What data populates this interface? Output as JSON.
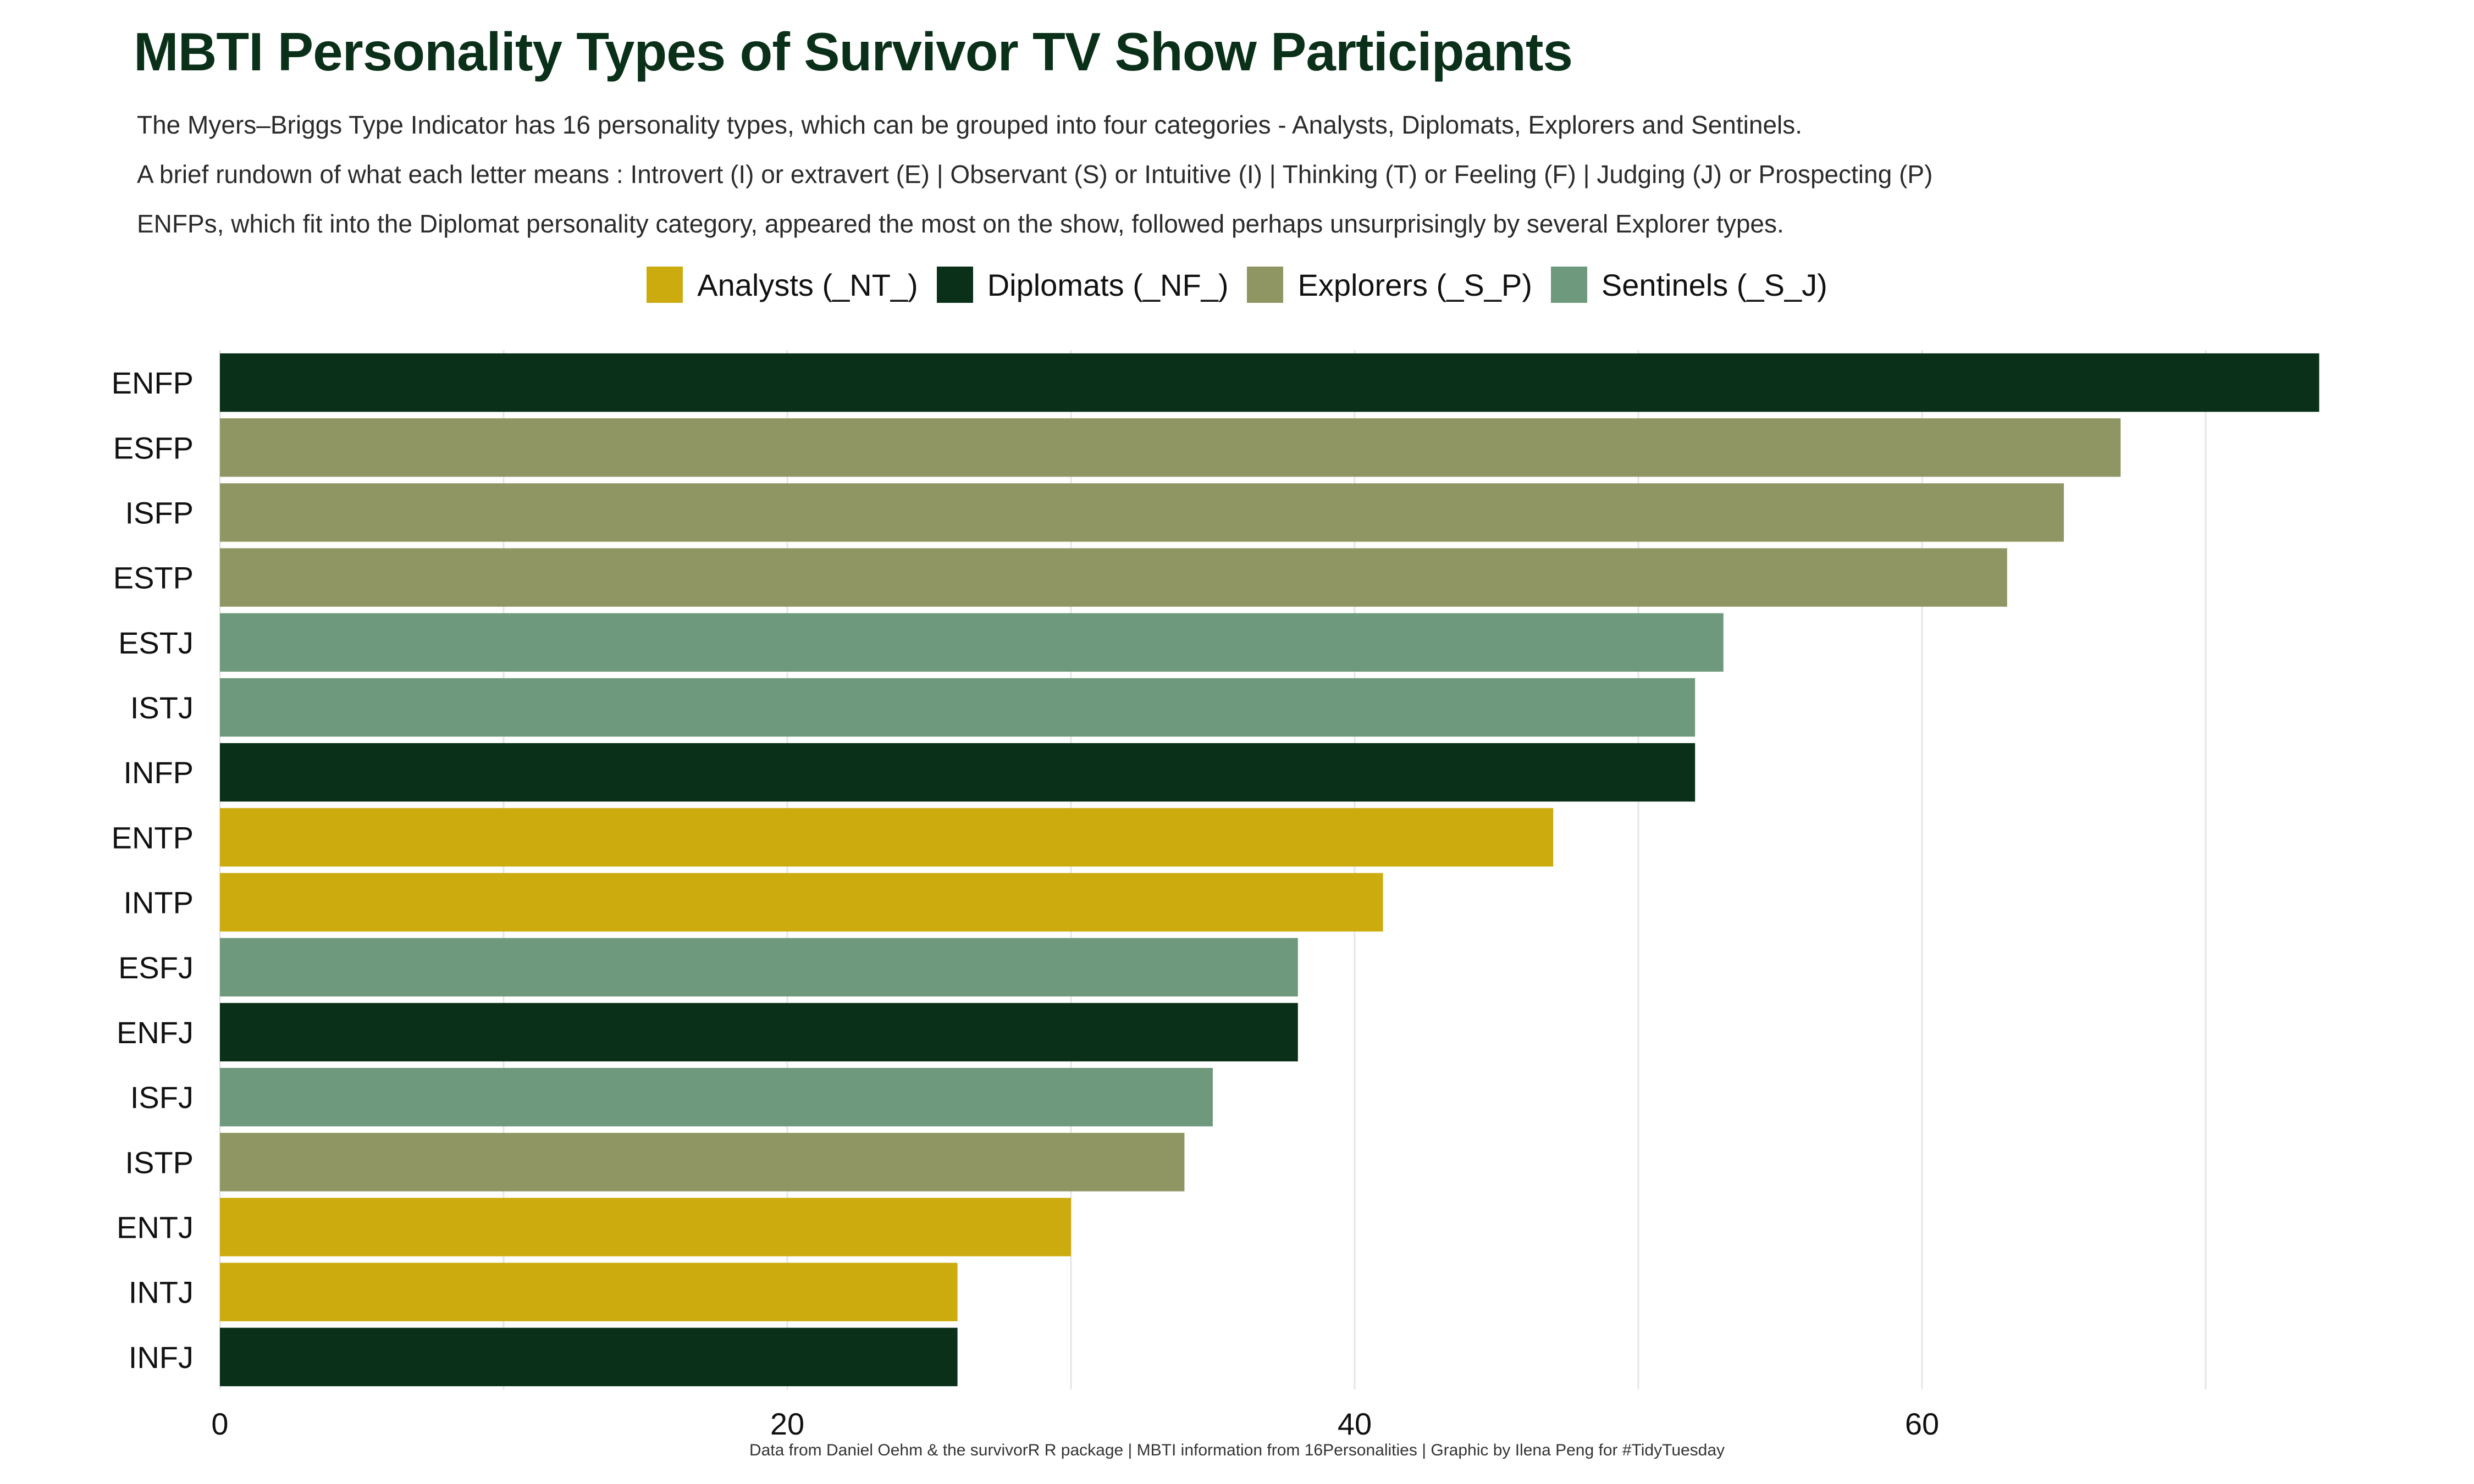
{
  "header": {
    "title": "MBTI Personality Types of Survivor TV Show Participants",
    "subtitle_lines": [
      "The Myers–Briggs Type Indicator has 16 personality types, which can be grouped into four categories - Analysts, Diplomats, Explorers and Sentinels.",
      "A brief rundown of what each letter means : Introvert (I) or extravert (E) | Observant (S) or Intuitive (I) | Thinking (T) or Feeling (F) | Judging (J) or Prospecting (P)",
      "ENFPs, which fit into the Diplomat personality category, appeared the most on the show, followed perhaps unsurprisingly by several Explorer types."
    ]
  },
  "legend": [
    {
      "label": "Analysts (_NT_)",
      "color": "#ccab0e"
    },
    {
      "label": "Diplomats (_NF_)",
      "color": "#0a3019"
    },
    {
      "label": "Explorers (_S_P)",
      "color": "#909663"
    },
    {
      "label": "Sentinels (_S_J)",
      "color": "#6f997c"
    }
  ],
  "caption": "Data from Daniel Oehm & the survivorR R package | MBTI information from 16Personalities | Graphic by Ilena Peng for #TidyTuesday",
  "chart_data": {
    "type": "bar",
    "orientation": "horizontal",
    "categories": [
      "ENFP",
      "ESFP",
      "ISFP",
      "ESTP",
      "ESTJ",
      "ISTJ",
      "INFP",
      "ENTP",
      "INTP",
      "ESFJ",
      "ENFJ",
      "ISFJ",
      "ISTP",
      "ENTJ",
      "INTJ",
      "INFJ"
    ],
    "values": [
      74,
      67,
      65,
      63,
      53,
      52,
      52,
      47,
      41,
      38,
      38,
      35,
      34,
      30,
      26,
      26
    ],
    "groups": [
      "Diplomats",
      "Explorers",
      "Explorers",
      "Explorers",
      "Sentinels",
      "Sentinels",
      "Diplomats",
      "Analysts",
      "Analysts",
      "Sentinels",
      "Diplomats",
      "Sentinels",
      "Explorers",
      "Analysts",
      "Analysts",
      "Diplomats"
    ],
    "group_colors": {
      "Analysts": "#ccab0e",
      "Diplomats": "#0a3019",
      "Explorers": "#909663",
      "Sentinels": "#6f997c"
    },
    "xticks": [
      0,
      20,
      40,
      60
    ],
    "xlim": [
      0,
      75
    ],
    "xlabel": "",
    "ylabel": "",
    "grid": "vertical",
    "legend_position": "top"
  }
}
